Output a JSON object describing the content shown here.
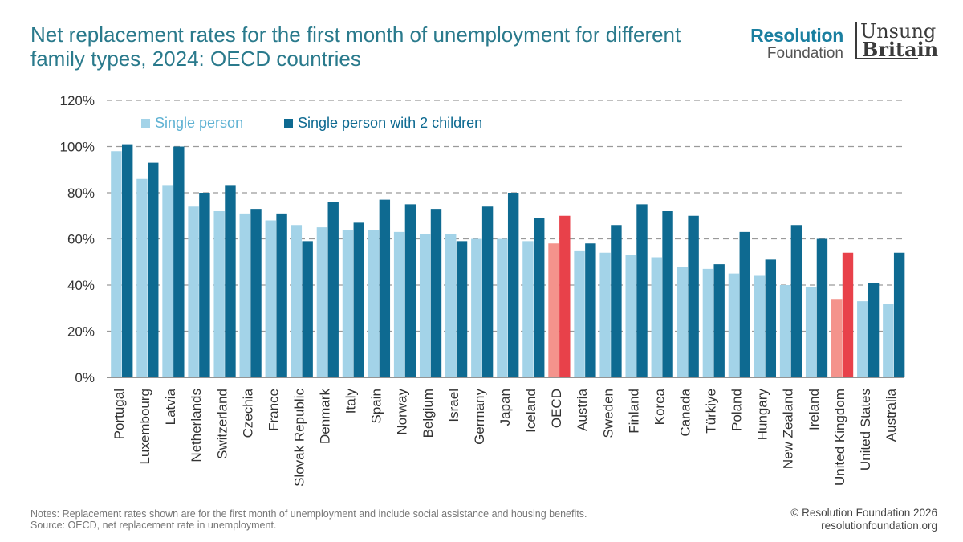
{
  "header": {
    "title": "Net replacement rates for the first month of unemployment for different family types, 2024: OECD countries",
    "logo_rf_line1": "Resolution",
    "logo_rf_line2": "Foundation",
    "logo_ub_line1": "Unsung",
    "logo_ub_line2": "Britain"
  },
  "footer": {
    "notes": "Notes: Replacement rates shown are for the first month of unemployment and include social assistance and housing benefits.",
    "source": "Source: OECD, net replacement rate in unemployment.",
    "copyright": "© Resolution Foundation 2026",
    "website": "resolutionfoundation.org"
  },
  "colors": {
    "single": "#a3d3e8",
    "children": "#0e6a91",
    "highlight_single": "#f4938c",
    "highlight_children": "#e8414a",
    "grid": "#9a9a9a",
    "axis_text": "#333333",
    "legend_single_text": "#5fb2d3",
    "legend_children_text": "#0e6a91"
  },
  "chart_data": {
    "type": "bar",
    "title": "Net replacement rates for the first month of unemployment for different family types, 2024: OECD countries",
    "xlabel": "",
    "ylabel": "",
    "ylim": [
      0,
      120
    ],
    "yticks": [
      0,
      20,
      40,
      60,
      80,
      100,
      120
    ],
    "ytick_labels": [
      "0%",
      "20%",
      "40%",
      "60%",
      "80%",
      "100%",
      "120%"
    ],
    "legend_position": "top-left",
    "highlighted": [
      "OECD",
      "United Kingdom"
    ],
    "categories": [
      "Portugal",
      "Luxembourg",
      "Latvia",
      "Netherlands",
      "Switzerland",
      "Czechia",
      "France",
      "Slovak Republic",
      "Denmark",
      "Italy",
      "Spain",
      "Norway",
      "Belgium",
      "Israel",
      "Germany",
      "Japan",
      "Iceland",
      "OECD",
      "Austria",
      "Sweden",
      "Finland",
      "Korea",
      "Canada",
      "Türkiye",
      "Poland",
      "Hungary",
      "New Zealand",
      "Ireland",
      "United Kingdom",
      "United States",
      "Australia"
    ],
    "series": [
      {
        "name": "Single person",
        "values": [
          98,
          86,
          83,
          74,
          72,
          71,
          68,
          66,
          65,
          64,
          64,
          63,
          62,
          62,
          60,
          60,
          59,
          58,
          55,
          54,
          53,
          52,
          48,
          47,
          45,
          44,
          40,
          39,
          34,
          33,
          32
        ]
      },
      {
        "name": "Single person with 2 children",
        "values": [
          101,
          93,
          100,
          80,
          83,
          73,
          71,
          59,
          76,
          67,
          77,
          75,
          73,
          59,
          74,
          80,
          69,
          70,
          58,
          66,
          75,
          72,
          70,
          49,
          63,
          51,
          66,
          60,
          54,
          41,
          54
        ]
      }
    ]
  }
}
